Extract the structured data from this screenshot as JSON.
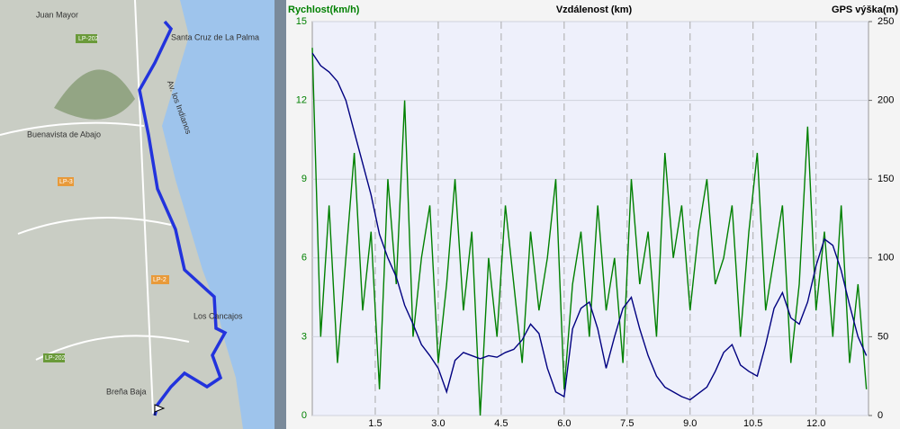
{
  "chart_data": {
    "type": "line",
    "title": "Vzdálenost (km)",
    "y_label": "Rychlost(km/h)",
    "y2_label": "GPS výška(m)",
    "x": [
      0,
      0.2,
      0.4,
      0.6,
      0.8,
      1.0,
      1.2,
      1.4,
      1.6,
      1.8,
      2.0,
      2.2,
      2.4,
      2.6,
      2.8,
      3.0,
      3.2,
      3.4,
      3.6,
      3.8,
      4.0,
      4.2,
      4.4,
      4.6,
      4.8,
      5.0,
      5.2,
      5.4,
      5.6,
      5.8,
      6.0,
      6.2,
      6.4,
      6.6,
      6.8,
      7.0,
      7.2,
      7.4,
      7.6,
      7.8,
      8.0,
      8.2,
      8.4,
      8.6,
      8.8,
      9.0,
      9.2,
      9.4,
      9.6,
      9.8,
      10.0,
      10.2,
      10.4,
      10.6,
      10.8,
      11.0,
      11.2,
      11.4,
      11.6,
      11.8,
      12.0,
      12.2,
      12.4,
      12.6,
      12.8,
      13.0,
      13.2
    ],
    "series": [
      {
        "name": "Rychlost(km/h)",
        "color": "#008000",
        "axis": "y",
        "values": [
          14,
          3,
          8,
          2,
          6,
          10,
          4,
          7,
          1,
          9,
          5,
          12,
          3,
          6,
          8,
          2,
          5,
          9,
          4,
          7,
          0,
          6,
          3,
          8,
          5,
          2,
          7,
          4,
          6,
          9,
          1,
          5,
          7,
          3,
          8,
          4,
          6,
          2,
          9,
          5,
          7,
          3,
          10,
          6,
          8,
          4,
          7,
          9,
          5,
          6,
          8,
          3,
          7,
          10,
          4,
          6,
          8,
          2,
          5,
          11,
          4,
          7,
          3,
          8,
          2,
          5,
          1
        ]
      },
      {
        "name": "GPS výška(m)",
        "color": "#000080",
        "axis": "y2",
        "values": [
          230,
          222,
          218,
          212,
          200,
          180,
          160,
          140,
          115,
          100,
          88,
          70,
          58,
          45,
          38,
          30,
          15,
          35,
          40,
          38,
          36,
          38,
          37,
          40,
          42,
          48,
          58,
          52,
          30,
          15,
          12,
          55,
          68,
          72,
          55,
          30,
          50,
          68,
          75,
          55,
          38,
          25,
          18,
          15,
          12,
          10,
          14,
          18,
          28,
          40,
          45,
          32,
          28,
          25,
          45,
          68,
          78,
          62,
          58,
          72,
          95,
          112,
          108,
          92,
          70,
          50,
          38
        ]
      }
    ],
    "xlim": [
      0,
      13.25
    ],
    "xticks": [
      {
        "value": 1.5,
        "label": "1.5"
      },
      {
        "value": 3,
        "label": "3.0"
      },
      {
        "value": 4.5,
        "label": "4.5"
      },
      {
        "value": 6,
        "label": "6.0"
      },
      {
        "value": 7.5,
        "label": "7.5"
      },
      {
        "value": 9,
        "label": "9.0"
      },
      {
        "value": 10.5,
        "label": "10.5"
      },
      {
        "value": 12,
        "label": "12.0"
      }
    ],
    "ylim": [
      0,
      15
    ],
    "yticks": [
      0,
      3,
      6,
      9,
      12,
      15
    ],
    "y2lim": [
      0,
      250
    ],
    "y2ticks": [
      0,
      50,
      100,
      150,
      200,
      250
    ],
    "grid": true
  },
  "map": {
    "labels": [
      "Santa Cruz de La Palma",
      "Buenavista de Abajo",
      "Los Cancajos",
      "Breña Baja",
      "Av. los Indianos",
      "Juan Mayor"
    ],
    "roads": [
      "LP-202",
      "LP-2",
      "LP-3",
      "LP-202"
    ]
  }
}
